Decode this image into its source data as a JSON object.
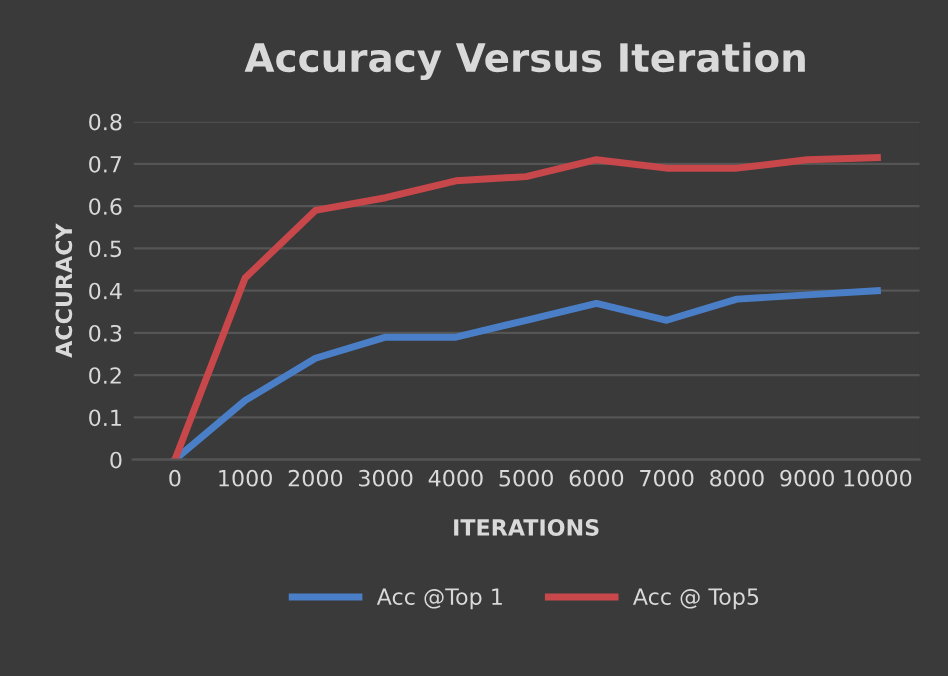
{
  "chart_data": {
    "type": "line",
    "title": "Accuracy Versus Iteration",
    "xlabel": "ITERATIONS",
    "ylabel": "ACCURACY",
    "categories": [
      "0",
      "1000",
      "2000",
      "3000",
      "4000",
      "5000",
      "6000",
      "7000",
      "8000",
      "9000",
      "10000"
    ],
    "series": [
      {
        "name": "Acc @Top 1",
        "color": "#4a7fc8",
        "values": [
          0,
          0.14,
          0.24,
          0.29,
          0.29,
          0.33,
          0.37,
          0.33,
          0.38,
          0.39,
          0.4
        ]
      },
      {
        "name": "Acc @ Top5",
        "color": "#c8474a",
        "values": [
          0,
          0.43,
          0.59,
          0.62,
          0.66,
          0.67,
          0.71,
          0.69,
          0.69,
          0.71,
          0.715
        ]
      }
    ],
    "ylim": [
      0,
      0.8
    ],
    "yticks": [
      0,
      0.1,
      0.2,
      0.3,
      0.4,
      0.5,
      0.6,
      0.7,
      0.8
    ],
    "grid": "y",
    "legend": "bottom",
    "marker": "none",
    "line_style": "solid"
  }
}
